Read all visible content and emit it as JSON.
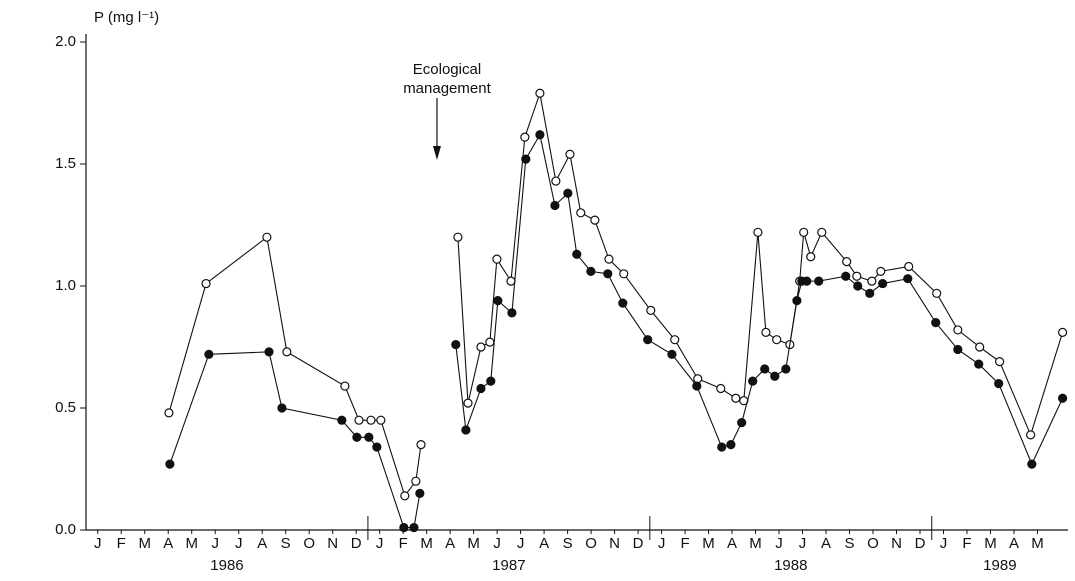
{
  "chart_data": {
    "type": "line",
    "y_label": "P (mg l⁻¹)",
    "ylim": [
      0,
      2.0
    ],
    "yticks": [
      {
        "value": 0,
        "label": "0.0"
      },
      0.5,
      {
        "value": 1,
        "label": "1.0"
      },
      1.5,
      {
        "value": 2,
        "label": "2.0"
      }
    ],
    "xlim": [
      0,
      41.8
    ],
    "xticks": [
      {
        "value": 0.5,
        "label": "J"
      },
      {
        "value": 1.5,
        "label": "F"
      },
      {
        "value": 2.5,
        "label": "M"
      },
      {
        "value": 3.5,
        "label": "A"
      },
      {
        "value": 4.5,
        "label": "M"
      },
      {
        "value": 5.5,
        "label": "J"
      },
      {
        "value": 6.5,
        "label": "J"
      },
      {
        "value": 7.5,
        "label": "A"
      },
      {
        "value": 8.5,
        "label": "S"
      },
      {
        "value": 9.5,
        "label": "O"
      },
      {
        "value": 10.5,
        "label": "N"
      },
      {
        "value": 11.5,
        "label": "D"
      },
      {
        "value": 12.5,
        "label": "J"
      },
      {
        "value": 13.5,
        "label": "F"
      },
      {
        "value": 14.5,
        "label": "M"
      },
      {
        "value": 15.5,
        "label": "A"
      },
      {
        "value": 16.5,
        "label": "M"
      },
      {
        "value": 17.5,
        "label": "J"
      },
      {
        "value": 18.5,
        "label": "J"
      },
      {
        "value": 19.5,
        "label": "A"
      },
      {
        "value": 20.5,
        "label": "S"
      },
      {
        "value": 21.5,
        "label": "O"
      },
      {
        "value": 22.5,
        "label": "N"
      },
      {
        "value": 23.5,
        "label": "D"
      },
      {
        "value": 24.5,
        "label": "J"
      },
      {
        "value": 25.5,
        "label": "F"
      },
      {
        "value": 26.5,
        "label": "M"
      },
      {
        "value": 27.5,
        "label": "A"
      },
      {
        "value": 28.5,
        "label": "M"
      },
      {
        "value": 29.5,
        "label": "J"
      },
      {
        "value": 30.5,
        "label": "J"
      },
      {
        "value": 31.5,
        "label": "A"
      },
      {
        "value": 32.5,
        "label": "S"
      },
      {
        "value": 33.5,
        "label": "O"
      },
      {
        "value": 34.5,
        "label": "N"
      },
      {
        "value": 35.5,
        "label": "D"
      },
      {
        "value": 36.5,
        "label": "J"
      },
      {
        "value": 37.5,
        "label": "F"
      },
      {
        "value": 38.5,
        "label": "M"
      },
      {
        "value": 39.5,
        "label": "A"
      },
      {
        "value": 40.5,
        "label": "M"
      }
    ],
    "year_boundaries": [
      12,
      24,
      36
    ],
    "year_labels": [
      {
        "value": 6,
        "label": "1986"
      },
      {
        "value": 18,
        "label": "1987"
      },
      {
        "value": 30,
        "label": "1988"
      },
      {
        "value": 38.9,
        "label": "1989"
      }
    ],
    "annotation": {
      "text": [
        "Ecological",
        "management"
      ],
      "x": 14.94
    },
    "series": [
      {
        "marker": "open",
        "color": "#111111",
        "x": [
          3.53,
          5.11,
          7.7,
          8.55,
          11.02,
          11.62,
          12.13,
          12.55,
          13.57,
          14.04,
          14.26,
          null,
          15.83,
          16.26,
          16.81,
          17.19,
          17.49,
          18.09,
          18.68,
          19.32,
          20.0,
          20.6,
          21.06,
          21.66,
          22.26,
          22.89,
          24.04,
          25.06,
          26.04,
          27.02,
          27.66,
          28.0,
          28.6,
          28.94,
          29.4,
          29.96,
          30.38,
          30.55,
          30.85,
          31.32,
          32.38,
          32.81,
          33.45,
          33.83,
          35.02,
          36.21,
          37.11,
          38.04,
          38.89,
          40.21,
          41.57
        ],
        "values": [
          0.48,
          1.01,
          1.2,
          0.73,
          0.59,
          0.45,
          0.45,
          0.45,
          0.14,
          0.2,
          0.35,
          null,
          1.2,
          0.52,
          0.75,
          0.77,
          1.11,
          1.02,
          1.61,
          1.79,
          1.43,
          1.54,
          1.3,
          1.27,
          1.11,
          1.05,
          0.9,
          0.78,
          0.62,
          0.58,
          0.54,
          0.53,
          1.22,
          0.81,
          0.78,
          0.76,
          1.02,
          1.22,
          1.12,
          1.22,
          1.1,
          1.04,
          1.02,
          1.06,
          1.08,
          0.97,
          0.82,
          0.75,
          0.69,
          0.39,
          0.81
        ]
      },
      {
        "marker": "filled",
        "color": "#111111",
        "x": [
          3.57,
          5.23,
          7.79,
          8.34,
          10.89,
          11.53,
          12.04,
          12.38,
          13.53,
          13.96,
          14.21,
          null,
          15.74,
          16.17,
          16.81,
          17.23,
          17.53,
          18.13,
          18.72,
          19.32,
          19.96,
          20.51,
          20.89,
          21.49,
          22.21,
          22.85,
          23.91,
          24.94,
          26.0,
          27.06,
          27.45,
          27.91,
          28.38,
          28.89,
          29.32,
          29.79,
          30.26,
          30.47,
          30.68,
          31.19,
          32.34,
          32.85,
          33.36,
          33.91,
          34.98,
          36.17,
          37.11,
          38.0,
          38.85,
          40.26,
          41.57
        ],
        "values": [
          0.27,
          0.72,
          0.73,
          0.5,
          0.45,
          0.38,
          0.38,
          0.34,
          0.01,
          0.01,
          0.15,
          null,
          0.76,
          0.41,
          0.58,
          0.61,
          0.94,
          0.89,
          1.52,
          1.62,
          1.33,
          1.38,
          1.13,
          1.06,
          1.05,
          0.93,
          0.78,
          0.72,
          0.59,
          0.34,
          0.35,
          0.44,
          0.61,
          0.66,
          0.63,
          0.66,
          0.94,
          1.02,
          1.02,
          1.02,
          1.04,
          1.0,
          0.97,
          1.01,
          1.03,
          0.85,
          0.74,
          0.68,
          0.6,
          0.27,
          0.54
        ]
      }
    ]
  }
}
